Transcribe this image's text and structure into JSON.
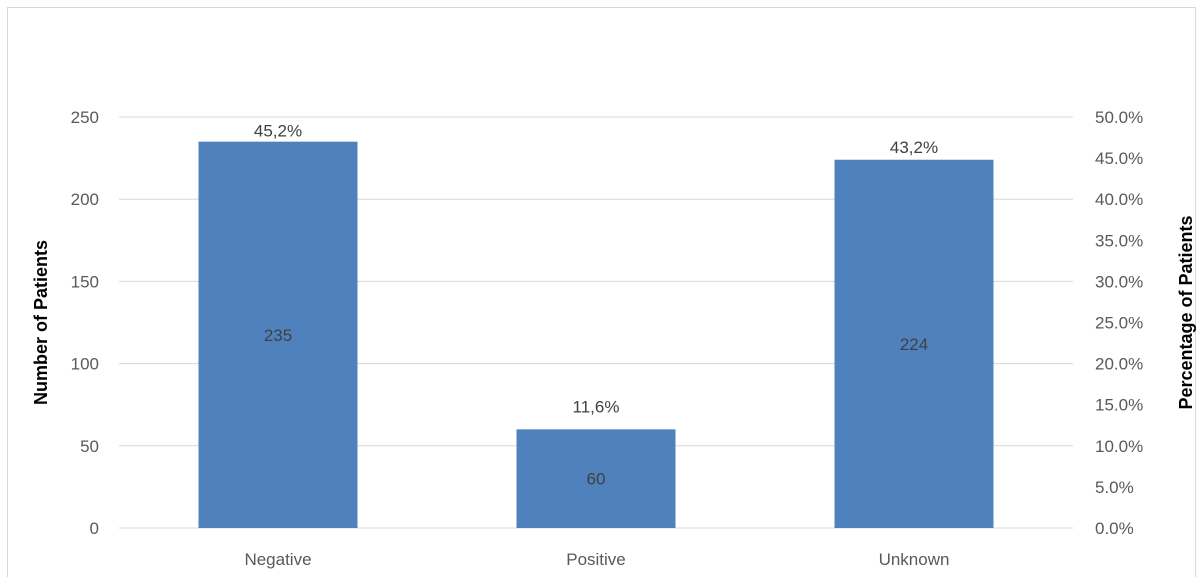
{
  "chart_data": {
    "type": "bar",
    "categories": [
      "Negative",
      "Positive",
      "Unknown"
    ],
    "values": [
      235,
      60,
      224
    ],
    "value_labels": [
      "235",
      "60",
      "224"
    ],
    "percentages": [
      45.2,
      11.6,
      43.2
    ],
    "percentage_labels": [
      "45,2%",
      "11,6%",
      "43,2%"
    ],
    "ylabel": "Number of Patients",
    "y2label": "Percentage of Patients",
    "ylim": [
      0,
      250
    ],
    "yticks": [
      0,
      50,
      100,
      150,
      200,
      250
    ],
    "ytick_labels": [
      "0",
      "50",
      "100",
      "150",
      "200",
      "250"
    ],
    "y2lim": [
      0,
      50
    ],
    "y2ticks": [
      0,
      5,
      10,
      15,
      20,
      25,
      30,
      35,
      40,
      45,
      50
    ],
    "y2tick_labels": [
      "0.0%",
      "5.0%",
      "10.0%",
      "15.0%",
      "20.0%",
      "25.0%",
      "30.0%",
      "35.0%",
      "40.0%",
      "45.0%",
      "50.0%"
    ],
    "grid": true,
    "legend": "none",
    "colors": {
      "bar": "#4f81bd",
      "grid": "#d9d9d9",
      "tick_text": "#595959",
      "data_label": "#404040"
    }
  }
}
